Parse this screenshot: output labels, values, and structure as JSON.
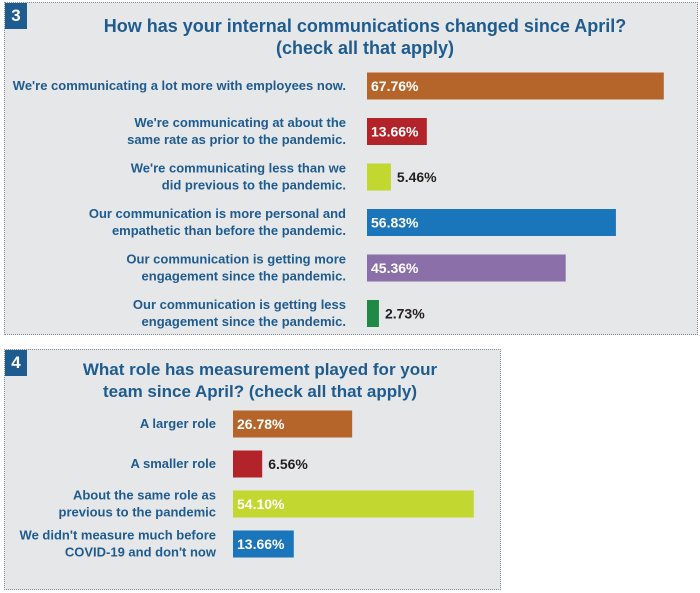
{
  "chart_data": [
    {
      "type": "bar",
      "badge": "3",
      "title_line1": "How has your internal communications changed since April?",
      "title_line2": "(check all that apply)",
      "categories": [
        [
          "We're communicating a lot more with employees now."
        ],
        [
          "We're communicating at about the",
          "same rate as prior to the pandemic."
        ],
        [
          "We're communicating less than we",
          "did previous to the pandemic."
        ],
        [
          "Our communication is more personal and",
          "empathetic than before the pandemic."
        ],
        [
          "Our communication is getting more",
          "engagement since the pandemic."
        ],
        [
          "Our communication is getting less",
          "engagement since the pandemic."
        ]
      ],
      "values": [
        67.76,
        13.66,
        5.46,
        56.83,
        45.36,
        2.73
      ],
      "value_labels": [
        "67.76%",
        "13.66%",
        "5.46%",
        "56.83%",
        "45.36%",
        "2.73%"
      ],
      "colors": [
        "#b5652a",
        "#b3242a",
        "#c2d72f",
        "#1b75bb",
        "#8a6fa8",
        "#1f8a45"
      ],
      "label_inside": [
        true,
        true,
        false,
        true,
        true,
        false
      ],
      "xlim": [
        0,
        100
      ]
    },
    {
      "type": "bar",
      "badge": "4",
      "title_line1": "What role has measurement played for your",
      "title_line2": "team since April? (check all that apply)",
      "categories": [
        [
          "A larger role"
        ],
        [
          "A smaller role"
        ],
        [
          "About the same role as",
          "previous to the pandemic"
        ],
        [
          "We didn't measure much before",
          "COVID-19 and don't now"
        ]
      ],
      "values": [
        26.78,
        6.56,
        54.1,
        13.66
      ],
      "value_labels": [
        "26.78%",
        "6.56%",
        "54.10%",
        "13.66%"
      ],
      "colors": [
        "#b5652a",
        "#b3242a",
        "#c2d72f",
        "#1b75bb"
      ],
      "label_inside": [
        true,
        false,
        true,
        true
      ],
      "xlim": [
        0,
        100
      ]
    }
  ]
}
